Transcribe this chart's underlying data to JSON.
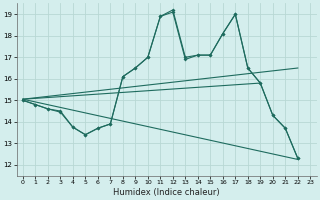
{
  "xlabel": "Humidex (Indice chaleur)",
  "xlim": [
    -0.5,
    23.5
  ],
  "ylim": [
    11.5,
    19.5
  ],
  "xticks": [
    0,
    1,
    2,
    3,
    4,
    5,
    6,
    7,
    8,
    9,
    10,
    11,
    12,
    13,
    14,
    15,
    16,
    17,
    18,
    19,
    20,
    21,
    22,
    23
  ],
  "yticks": [
    12,
    13,
    14,
    15,
    16,
    17,
    18,
    19
  ],
  "bg_color": "#d4eeed",
  "grid_color": "#b8d8d4",
  "line_color": "#1e6b5e",
  "line1_x": [
    0,
    1,
    2,
    3,
    4,
    5,
    6,
    7,
    8,
    9,
    10,
    11,
    12,
    13,
    14,
    15,
    16,
    17,
    18,
    19,
    20,
    21,
    22
  ],
  "line1_y": [
    15.0,
    14.8,
    14.6,
    14.5,
    13.75,
    13.4,
    13.7,
    13.9,
    16.1,
    16.5,
    17.0,
    18.9,
    19.2,
    17.0,
    17.1,
    17.1,
    18.1,
    19.0,
    16.5,
    15.8,
    14.3,
    13.7,
    12.3
  ],
  "line2_x": [
    0,
    1,
    2,
    3,
    4,
    5,
    6,
    7,
    8,
    9,
    10,
    11,
    12,
    13,
    14,
    15,
    16,
    17,
    18,
    19,
    20,
    21,
    22
  ],
  "line2_y": [
    15.0,
    14.8,
    14.6,
    14.45,
    13.75,
    13.4,
    13.7,
    13.9,
    16.1,
    16.5,
    17.0,
    18.9,
    19.1,
    16.9,
    17.1,
    17.1,
    18.1,
    19.0,
    16.5,
    15.8,
    14.3,
    13.7,
    12.3
  ],
  "line3_x": [
    0,
    22
  ],
  "line3_y": [
    15.05,
    16.5
  ],
  "line4_x": [
    0,
    19
  ],
  "line4_y": [
    15.05,
    15.8
  ],
  "line5_x": [
    0,
    22
  ],
  "line5_y": [
    15.05,
    12.25
  ]
}
